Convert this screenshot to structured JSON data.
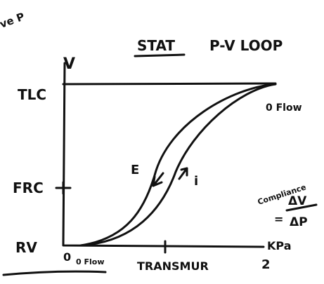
{
  "corner_note": "ve P",
  "title": {
    "underlined": "STAT",
    "rest": "P-V LOOP"
  },
  "y_axis": {
    "label": "V",
    "ticks": [
      "TLC",
      "FRC",
      "RV"
    ]
  },
  "x_axis": {
    "label": "KPa",
    "origin": "0",
    "end": "2",
    "caption": "TRANSMUR"
  },
  "annotations": {
    "origin_flow": "0 Flow",
    "top_flow": "0 Flow",
    "expiration": "E",
    "inspiration": "i"
  },
  "compliance": {
    "label": "Compliance",
    "equals": "=",
    "numerator": "ΔV",
    "denominator": "ΔP"
  }
}
